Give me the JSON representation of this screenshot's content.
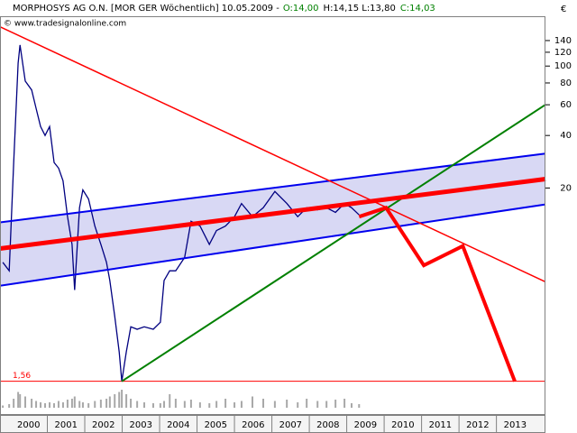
{
  "chart_data": {
    "type": "line",
    "title": "MORPHOSYS AG O.N. [MOR GER  Wöchentlich] 10.05.2009 -",
    "quote": {
      "open": "O:14,00",
      "range": "H:14,15 L:13,80",
      "close": "C:14,03"
    },
    "source": "© www.tradesignalonline.com",
    "currency": "€",
    "log_y": true,
    "xlim": [
      1999.735,
      2014.31
    ],
    "ylim": [
      1,
      193
    ],
    "yticks": [
      20,
      40,
      60,
      80,
      100,
      120,
      140
    ],
    "xticks": [
      {
        "value": 2000.5,
        "label": "2000"
      },
      {
        "value": 2001.5,
        "label": "2001"
      },
      {
        "value": 2002.5,
        "label": "2002"
      },
      {
        "value": 2003.5,
        "label": "2003"
      },
      {
        "value": 2004.5,
        "label": "2004"
      },
      {
        "value": 2005.5,
        "label": "2005"
      },
      {
        "value": 2006.5,
        "label": "2006"
      },
      {
        "value": 2007.5,
        "label": "2007"
      },
      {
        "value": 2008.5,
        "label": "2008"
      },
      {
        "value": 2009.5,
        "label": "2009"
      },
      {
        "value": 2010.5,
        "label": "2010"
      },
      {
        "value": 2011.5,
        "label": "2011"
      },
      {
        "value": 2012.5,
        "label": "2012"
      },
      {
        "value": 2013.5,
        "label": "2013"
      }
    ],
    "x": [
      1999.81,
      1999.98,
      2000.1,
      2000.22,
      2000.27,
      2000.41,
      2000.58,
      2000.7,
      2000.82,
      2000.94,
      2001.06,
      2001.18,
      2001.3,
      2001.42,
      2001.54,
      2001.66,
      2001.73,
      2001.86,
      2001.95,
      2002.1,
      2002.27,
      2002.43,
      2002.58,
      2002.67,
      2002.8,
      2002.92,
      2002.99,
      2003.11,
      2003.23,
      2003.4,
      2003.59,
      2003.83,
      2004.02,
      2004.12,
      2004.27,
      2004.43,
      2004.67,
      2004.84,
      2005.08,
      2005.33,
      2005.52,
      2005.76,
      2006.0,
      2006.19,
      2006.48,
      2006.77,
      2007.08,
      2007.4,
      2007.69,
      2007.93,
      2008.22,
      2008.46,
      2008.7,
      2008.94,
      2009.13,
      2009.33
    ],
    "values": [
      7.5,
      6.7,
      28,
      104,
      132,
      82,
      73,
      57,
      45,
      40,
      45,
      28,
      26,
      22,
      13.7,
      9.5,
      5.2,
      15.4,
      19.5,
      17.3,
      12.1,
      9.5,
      7.5,
      5.9,
      3.7,
      2.3,
      1.56,
      2.3,
      3.2,
      3.1,
      3.2,
      3.1,
      3.4,
      5.9,
      6.7,
      6.7,
      8.0,
      12.9,
      12.1,
      9.5,
      11.4,
      12.1,
      13.7,
      16.3,
      13.7,
      15.4,
      19.1,
      16.3,
      13.7,
      15.4,
      15.0,
      15.4,
      14.5,
      16.3,
      15.4,
      14.03
    ],
    "color": "#000080",
    "volume": [
      5,
      8,
      20,
      35,
      30,
      25,
      20,
      15,
      12,
      10,
      12,
      10,
      15,
      12,
      18,
      20,
      25,
      15,
      12,
      10,
      15,
      18,
      20,
      25,
      30,
      35,
      40,
      30,
      20,
      15,
      12,
      10,
      10,
      15,
      30,
      20,
      15,
      18,
      12,
      10,
      15,
      20,
      12,
      15,
      25,
      20,
      15,
      18,
      12,
      20,
      15,
      15,
      18,
      20,
      10,
      8
    ],
    "volume_lim": [
      0,
      100
    ],
    "volume_color": "#a8a8a8",
    "channel_fill": "#d8d8f4",
    "lines": [
      {
        "role": "upper",
        "color": "#0000ee",
        "width": 2,
        "x": [
          1999.735,
          2014.31
        ],
        "y": [
          12.7,
          31.5
        ]
      },
      {
        "role": "lower",
        "color": "#0000ee",
        "width": 2,
        "x": [
          1999.735,
          2014.31
        ],
        "y": [
          5.5,
          16.1
        ]
      },
      {
        "color": "#ff0000",
        "width": 1.5,
        "x": [
          1999.735,
          2014.31
        ],
        "y": [
          168,
          5.8
        ]
      },
      {
        "color": "#008000",
        "width": 2,
        "x": [
          2002.99,
          2014.31
        ],
        "y": [
          1.56,
          60
        ]
      },
      {
        "color": "#ff0000",
        "width": 5,
        "x": [
          1999.735,
          2014.31
        ],
        "y": [
          9.0,
          22.5
        ]
      },
      {
        "color": "#ff0000",
        "width": 4,
        "x": [
          2009.33,
          2010.05,
          2011.06,
          2012.1,
          2013.49
        ],
        "y": [
          13.7,
          15.4,
          7.2,
          9.3,
          1.56
        ]
      }
    ],
    "hline": {
      "value": 1.56,
      "label": "1,56",
      "color": "#ff0000"
    }
  }
}
